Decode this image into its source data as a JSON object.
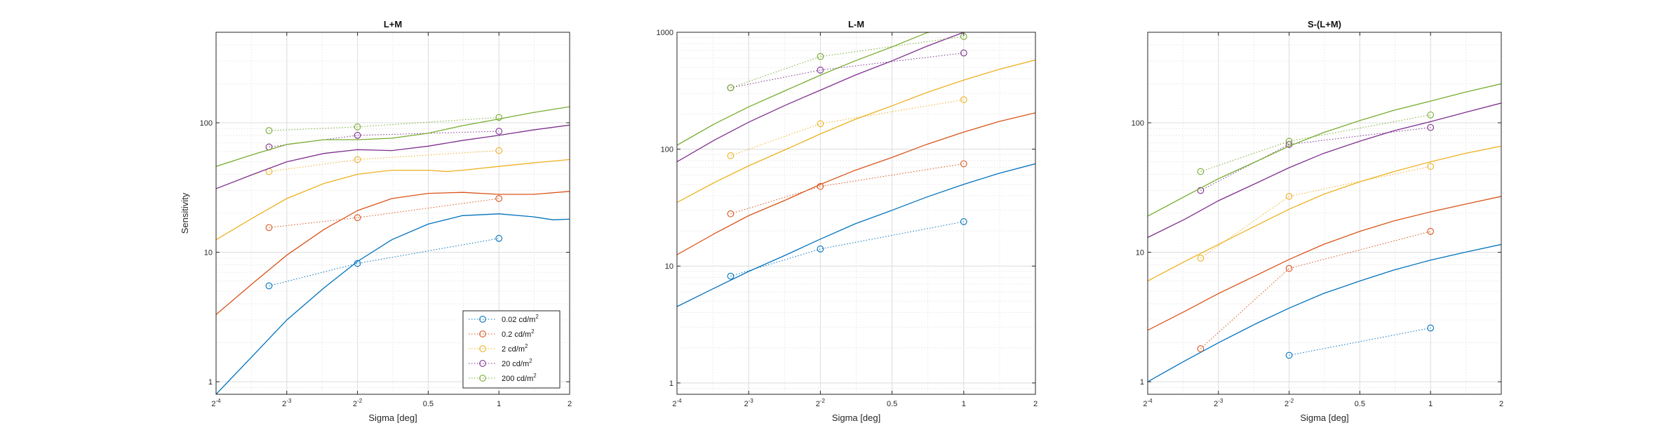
{
  "figure": {
    "ylabel": "Sensitivity",
    "xlabel": "Sigma [deg]"
  },
  "legend": {
    "placement": "lower-right of first panel",
    "entries": [
      {
        "base": "0.02 cd/m",
        "sup": "2",
        "color": "#0072BD"
      },
      {
        "base": "0.2 cd/m",
        "sup": "2",
        "color": "#D95319"
      },
      {
        "base": "2 cd/m",
        "sup": "2",
        "color": "#EDB120"
      },
      {
        "base": "20 cd/m",
        "sup": "2",
        "color": "#7E2F8E"
      },
      {
        "base": "200 cd/m",
        "sup": "2",
        "color": "#77AC30"
      }
    ]
  },
  "x_ticks": [
    {
      "value": 0.0625,
      "base": "2",
      "exp": "-4"
    },
    {
      "value": 0.125,
      "base": "2",
      "exp": "-3"
    },
    {
      "value": 0.25,
      "base": "2",
      "exp": "-2"
    },
    {
      "value": 0.5,
      "base": "0.5",
      "exp": ""
    },
    {
      "value": 1,
      "base": "1",
      "exp": ""
    },
    {
      "value": 2,
      "base": "2",
      "exp": ""
    }
  ],
  "chart_data": [
    {
      "type": "line",
      "title": "L+M",
      "xlabel": "Sigma [deg]",
      "ylabel": "Sensitivity",
      "x_scale": "log2",
      "y_scale": "log10",
      "xlim": [
        0.0625,
        2
      ],
      "ylim": [
        0.8,
        500
      ],
      "y_ticks": [
        {
          "value": 1,
          "label": "1"
        },
        {
          "value": 10,
          "label": "10"
        },
        {
          "value": 100,
          "label": "100"
        }
      ],
      "grid": true,
      "legend": true,
      "series": [
        {
          "name": "0.02 cd/m2",
          "color": "#0072BD",
          "measured": {
            "x": [
              0.105,
              0.25,
              1
            ],
            "y": [
              5.5,
              8.2,
              12.8
            ]
          },
          "fit": {
            "x": [
              0.0625,
              0.09,
              0.125,
              0.18,
              0.25,
              0.35,
              0.5,
              0.7,
              1,
              1.4,
              1.7,
              2
            ],
            "y": [
              0.8,
              1.6,
              3.0,
              5.3,
              8.5,
              12.5,
              16.5,
              19.2,
              19.8,
              18.8,
              17.8,
              18.0
            ]
          }
        },
        {
          "name": "0.2 cd/m2",
          "color": "#D95319",
          "measured": {
            "x": [
              0.105,
              0.25,
              1
            ],
            "y": [
              15.5,
              18.5,
              26
            ]
          },
          "fit": {
            "x": [
              0.0625,
              0.09,
              0.125,
              0.18,
              0.25,
              0.35,
              0.5,
              0.7,
              1,
              1.4,
              2
            ],
            "y": [
              3.3,
              5.8,
              9.5,
              15.0,
              21.0,
              26.0,
              28.5,
              29.0,
              28.0,
              28.0,
              29.5
            ]
          }
        },
        {
          "name": "2 cd/m2",
          "color": "#EDB120",
          "measured": {
            "x": [
              0.105,
              0.25,
              1
            ],
            "y": [
              42,
              52,
              61
            ]
          },
          "fit": {
            "x": [
              0.0625,
              0.09,
              0.125,
              0.18,
              0.25,
              0.35,
              0.5,
              0.6,
              0.7,
              1,
              1.4,
              2
            ],
            "y": [
              12.5,
              18.5,
              26.0,
              34.0,
              40.0,
              43.0,
              43.0,
              42.0,
              43.0,
              46.0,
              49.0,
              52.0
            ]
          }
        },
        {
          "name": "20 cd/m2",
          "color": "#7E2F8E",
          "measured": {
            "x": [
              0.105,
              0.25,
              1
            ],
            "y": [
              65,
              80,
              86
            ]
          },
          "fit": {
            "x": [
              0.0625,
              0.09,
              0.125,
              0.18,
              0.25,
              0.3,
              0.35,
              0.5,
              0.7,
              1,
              1.4,
              2
            ],
            "y": [
              31,
              40,
              50,
              58,
              62,
              61.5,
              61,
              66,
              73,
              80,
              88,
              96
            ]
          }
        },
        {
          "name": "200 cd/m2",
          "color": "#77AC30",
          "measured": {
            "x": [
              0.105,
              0.25,
              1
            ],
            "y": [
              87,
              93,
              110
            ]
          },
          "fit": {
            "x": [
              0.0625,
              0.09,
              0.125,
              0.18,
              0.25,
              0.35,
              0.5,
              0.7,
              1,
              1.4,
              2
            ],
            "y": [
              46,
              57,
              68,
              74,
              74,
              76,
              83,
              95,
              107,
              120,
              133
            ]
          }
        }
      ]
    },
    {
      "type": "line",
      "title": "L-M",
      "xlabel": "Sigma [deg]",
      "ylabel": "",
      "x_scale": "log2",
      "y_scale": "log10",
      "xlim": [
        0.0625,
        2
      ],
      "ylim": [
        0.8,
        1000
      ],
      "y_ticks": [
        {
          "value": 1,
          "label": "1"
        },
        {
          "value": 10,
          "label": "10"
        },
        {
          "value": 100,
          "label": "100"
        },
        {
          "value": 1000,
          "label": "1000"
        }
      ],
      "grid": true,
      "legend": false,
      "series": [
        {
          "name": "0.02 cd/m2",
          "color": "#0072BD",
          "measured": {
            "x": [
              0.105,
              0.25,
              1
            ],
            "y": [
              8.2,
              14,
              24
            ]
          },
          "fit": {
            "x": [
              0.0625,
              0.09,
              0.125,
              0.18,
              0.25,
              0.35,
              0.5,
              0.7,
              1,
              1.4,
              2
            ],
            "y": [
              4.5,
              6.5,
              9.0,
              12.5,
              17.0,
              23.0,
              30.0,
              39.0,
              50.0,
              62.0,
              75.0
            ]
          }
        },
        {
          "name": "0.2 cd/m2",
          "color": "#D95319",
          "measured": {
            "x": [
              0.105,
              0.25,
              1
            ],
            "y": [
              28,
              48,
              75
            ]
          },
          "fit": {
            "x": [
              0.0625,
              0.09,
              0.125,
              0.18,
              0.25,
              0.35,
              0.5,
              0.7,
              1,
              1.4,
              2
            ],
            "y": [
              12.5,
              19.0,
              27.0,
              37.0,
              50.0,
              66.0,
              85.0,
              110.0,
              140.0,
              172.0,
              205.0
            ]
          }
        },
        {
          "name": "2 cd/m2",
          "color": "#EDB120",
          "measured": {
            "x": [
              0.105,
              0.25,
              1
            ],
            "y": [
              88,
              165,
              265
            ]
          },
          "fit": {
            "x": [
              0.0625,
              0.09,
              0.125,
              0.18,
              0.25,
              0.35,
              0.5,
              0.7,
              1,
              1.4,
              2
            ],
            "y": [
              35,
              52,
              72,
              100,
              135,
              180,
              235,
              305,
              390,
              480,
              580
            ]
          }
        },
        {
          "name": "20 cd/m2",
          "color": "#7E2F8E",
          "measured": {
            "x": [
              0.105,
              0.25,
              1
            ],
            "y": [
              335,
              475,
              665
            ]
          },
          "fit": {
            "x": [
              0.0625,
              0.09,
              0.125,
              0.18,
              0.25,
              0.35,
              0.5,
              0.7,
              1,
              1.18
            ],
            "y": [
              78,
              120,
              170,
              240,
              320,
              430,
              570,
              760,
              1000,
              1100
            ]
          }
        },
        {
          "name": "200 cd/m2",
          "color": "#77AC30",
          "measured": {
            "x": [
              0.105,
              0.25,
              1
            ],
            "y": [
              335,
              620,
              920
            ]
          },
          "fit": {
            "x": [
              0.0625,
              0.09,
              0.125,
              0.18,
              0.25,
              0.35,
              0.5,
              0.7,
              0.9
            ],
            "y": [
              108,
              165,
              230,
              320,
              430,
              570,
              750,
              990,
              1100
            ]
          }
        }
      ]
    },
    {
      "type": "line",
      "title": "S-(L+M)",
      "xlabel": "Sigma [deg]",
      "ylabel": "",
      "x_scale": "log2",
      "y_scale": "log10",
      "xlim": [
        0.0625,
        2
      ],
      "ylim": [
        0.8,
        500
      ],
      "y_ticks": [
        {
          "value": 1,
          "label": "1"
        },
        {
          "value": 10,
          "label": "10"
        },
        {
          "value": 100,
          "label": "100"
        }
      ],
      "grid": true,
      "legend": false,
      "series": [
        {
          "name": "0.02 cd/m2",
          "color": "#0072BD",
          "measured": {
            "x": [
              0.25,
              1
            ],
            "y": [
              1.6,
              2.6
            ]
          },
          "fit": {
            "x": [
              0.0625,
              0.09,
              0.125,
              0.18,
              0.25,
              0.35,
              0.5,
              0.7,
              1,
              1.4,
              2
            ],
            "y": [
              1.0,
              1.45,
              2.0,
              2.8,
              3.7,
              4.8,
              6.0,
              7.3,
              8.7,
              10.0,
              11.5
            ]
          }
        },
        {
          "name": "0.2 cd/m2",
          "color": "#D95319",
          "measured": {
            "x": [
              0.105,
              0.25,
              1
            ],
            "y": [
              1.8,
              7.5,
              14.5
            ]
          },
          "fit": {
            "x": [
              0.0625,
              0.09,
              0.125,
              0.18,
              0.25,
              0.35,
              0.5,
              0.7,
              1,
              1.4,
              2
            ],
            "y": [
              2.5,
              3.5,
              4.8,
              6.6,
              8.8,
              11.5,
              14.5,
              17.5,
              20.5,
              23.5,
              27.0
            ]
          }
        },
        {
          "name": "2 cd/m2",
          "color": "#EDB120",
          "measured": {
            "x": [
              0.105,
              0.25,
              1
            ],
            "y": [
              9,
              27,
              46
            ]
          },
          "fit": {
            "x": [
              0.0625,
              0.09,
              0.125,
              0.18,
              0.25,
              0.35,
              0.5,
              0.7,
              1,
              1.4,
              2
            ],
            "y": [
              6.0,
              8.5,
              11.5,
              16.0,
              21.5,
              28.0,
              35.0,
              42.0,
              50.0,
              58.0,
              66.0
            ]
          }
        },
        {
          "name": "20 cd/m2",
          "color": "#7E2F8E",
          "measured": {
            "x": [
              0.105,
              0.25,
              1
            ],
            "y": [
              30,
              68,
              92
            ]
          },
          "fit": {
            "x": [
              0.0625,
              0.09,
              0.125,
              0.18,
              0.25,
              0.35,
              0.5,
              0.7,
              1,
              1.4,
              2
            ],
            "y": [
              13,
              18,
              25,
              34,
              45,
              58,
              72,
              87,
              102,
              120,
              142
            ]
          }
        },
        {
          "name": "200 cd/m2",
          "color": "#77AC30",
          "measured": {
            "x": [
              0.105,
              0.25,
              1
            ],
            "y": [
              42,
              72,
              115
            ]
          },
          "fit": {
            "x": [
              0.0625,
              0.09,
              0.125,
              0.18,
              0.25,
              0.35,
              0.5,
              0.7,
              1,
              1.4,
              2
            ],
            "y": [
              19,
              27,
              37,
              50,
              66,
              84,
              104,
              125,
              147,
              172,
              200
            ]
          }
        }
      ]
    }
  ]
}
